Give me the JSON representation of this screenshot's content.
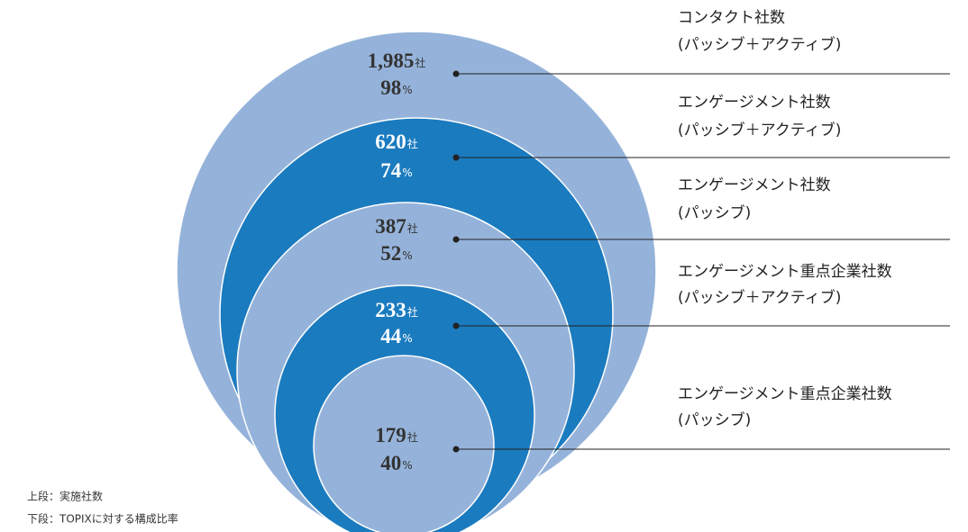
{
  "chart_data": {
    "type": "nested-circles",
    "categories": [
      [
        "コンタクト社数",
        "(パッシブ＋アクティブ)"
      ],
      [
        "エンゲージメント社数",
        "(パッシブ＋アクティブ)"
      ],
      [
        "エンゲージメント社数",
        "(パッシブ)"
      ],
      [
        "エンゲージメント重点企業社数",
        "(パッシブ＋アクティブ)"
      ],
      [
        "エンゲージメント重点企業社数",
        "(パッシブ)"
      ]
    ],
    "values": [
      1985,
      620,
      387,
      233,
      179
    ],
    "value_labels": [
      "1,985",
      "620",
      "387",
      "233",
      "179"
    ],
    "count_unit": "社",
    "percents": [
      98,
      74,
      52,
      44,
      40
    ],
    "percent_unit": "%",
    "colors": [
      "#95b3da",
      "#1b7bbf",
      "#95b3da",
      "#1b7bbf",
      "#95b3da"
    ],
    "notes": [
      "上段：実施社数",
      "下段：TOPIXに対する構成比率"
    ]
  }
}
